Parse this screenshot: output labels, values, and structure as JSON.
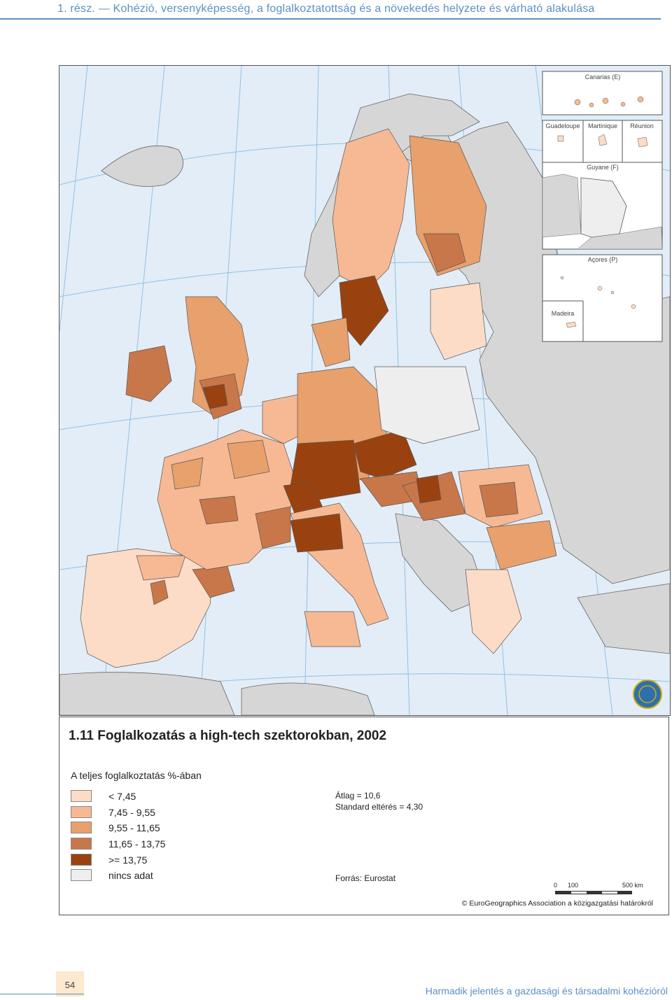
{
  "header": {
    "title": "1. rész. — Kohézió, versenyképesség, a foglalkoztatottság és a növekedés helyzete és várható alakulása"
  },
  "map": {
    "title": "1.11 Foglalkozatás a high-tech szektorokban, 2002",
    "subtitle": "A teljes foglalkoztatás %-ában",
    "legend": [
      {
        "label": "< 7,45",
        "color": "#fcdcc6"
      },
      {
        "label": "7,45 - 9,55",
        "color": "#f6b994"
      },
      {
        "label": "9,55 - 11,65",
        "color": "#e8a06c"
      },
      {
        "label": "11,65 - 13,75",
        "color": "#c8774a"
      },
      {
        "label": ">= 13,75",
        "color": "#9a420f"
      },
      {
        "label": "nincs adat",
        "color": "#eeeeee"
      }
    ],
    "stats": {
      "mean": "Átlag = 10,6",
      "sd": "Standard eltérés = 4,30"
    },
    "source": "Forrás: Eurostat",
    "scale": {
      "zero": "0",
      "mid": "100",
      "end": "500 km"
    },
    "copyright": "© EuroGeographics Association a közigazgatási határokról",
    "insets": {
      "canarias": "Canarias (E)",
      "guadeloupe": "Guadeloupe",
      "martinique": "Martinique",
      "reunion": "Réunion",
      "guyane": "Guyane (F)",
      "acores": "Açores (P)",
      "madeira": "Madeira"
    },
    "colors": {
      "sea": "#e3edf7",
      "non_eu": "#d6d6d6",
      "graticule": "#8fc1e4",
      "border": "#555555"
    }
  },
  "footer": {
    "page": "54",
    "text": "Harmadik jelentés a gazdasági és társadalmi kohézióról"
  }
}
